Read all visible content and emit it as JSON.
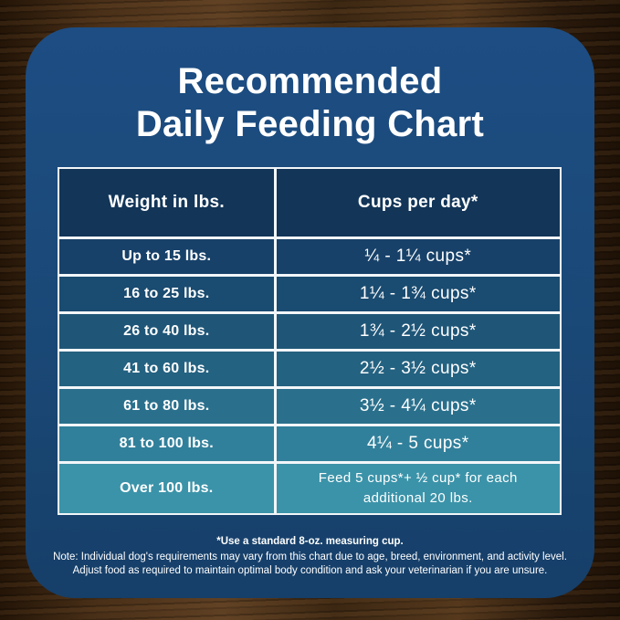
{
  "title": {
    "line1": "Recommended",
    "line2": "Daily Feeding Chart"
  },
  "table": {
    "headers": [
      "Weight in lbs.",
      "Cups per day*"
    ],
    "rows": [
      {
        "weight": "Up to 15 lbs.",
        "cups": "¼ - 1¼ cups*",
        "bg": "#174169"
      },
      {
        "weight": "16 to 25 lbs.",
        "cups": "1¼ - 1¾ cups*",
        "bg": "#1a4b70"
      },
      {
        "weight": "26 to 40 lbs.",
        "cups": "1¾ - 2½ cups*",
        "bg": "#1f5678"
      },
      {
        "weight": "41 to 60 lbs.",
        "cups": "2½ - 3½ cups*",
        "bg": "#246281"
      },
      {
        "weight": "61 to 80 lbs.",
        "cups": "3½ - 4¼ cups*",
        "bg": "#2a708d"
      },
      {
        "weight": "81 to 100 lbs.",
        "cups": "4¼ - 5 cups*",
        "bg": "#31809b"
      },
      {
        "weight": "Over 100 lbs.",
        "cups": "Feed 5 cups*+ ½ cup* for each additional 20 lbs.",
        "bg": "#3b93a9"
      }
    ]
  },
  "footnotes": {
    "measuring_cup": "*Use a standard 8-oz. measuring cup.",
    "note_line1": "Note: Individual dog's requirements may vary from this chart due to age, breed, environment, and activity level.",
    "note_line2": "Adjust food as required to maintain optimal body condition and ask your veterinarian if you are unsure."
  },
  "colors": {
    "card_top": "#1d4d83",
    "card_bottom": "#163f69",
    "header_bg": "#123558",
    "table_border": "#f2f6f9",
    "text_light": "#ffffff",
    "wood_base": "#33200f"
  },
  "chart_data": {
    "type": "table",
    "title": "Recommended Daily Feeding Chart",
    "columns": [
      "Weight in lbs.",
      "Cups per day*"
    ],
    "rows": [
      [
        "Up to 15 lbs.",
        "¼ - 1¼ cups*"
      ],
      [
        "16 to 25 lbs.",
        "1¼ - 1¾ cups*"
      ],
      [
        "26 to 40 lbs.",
        "1¾ - 2½ cups*"
      ],
      [
        "41 to 60 lbs.",
        "2½ - 3½ cups*"
      ],
      [
        "61 to 80 lbs.",
        "3½ - 4¼ cups*"
      ],
      [
        "81 to 100 lbs.",
        "4¼ - 5 cups*"
      ],
      [
        "Over 100 lbs.",
        "Feed 5 cups*+ ½ cup* for each additional 20 lbs."
      ]
    ],
    "footnote": "*Use a standard 8-oz. measuring cup."
  }
}
